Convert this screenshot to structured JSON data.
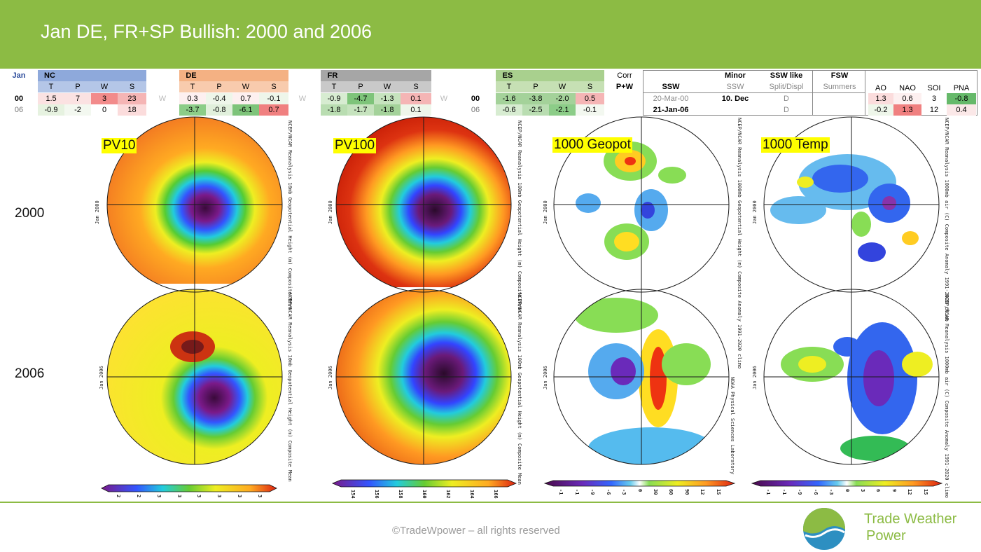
{
  "title": "Jan DE, FR+SP Bullish: 2000 and 2006",
  "tables": {
    "month": "Jan",
    "nc": {
      "name": "NC",
      "cols": [
        "T",
        "P",
        "W",
        "S"
      ],
      "rows": [
        {
          "year": "00",
          "vals": [
            "1.5",
            "7",
            "3",
            "23"
          ]
        },
        {
          "year": "06",
          "vals": [
            "-0.9",
            "-2",
            "0",
            "18"
          ]
        }
      ]
    },
    "de": {
      "name": "DE",
      "cols": [
        "T",
        "P",
        "W",
        "S"
      ],
      "rows": [
        {
          "vals": [
            "0.3",
            "-0.4",
            "0.7",
            "-0.1"
          ]
        },
        {
          "vals": [
            "-3.7",
            "-0.8",
            "-6.1",
            "0.7"
          ]
        }
      ]
    },
    "fr": {
      "name": "FR",
      "cols": [
        "T",
        "P",
        "W",
        "S"
      ],
      "rows": [
        {
          "vals": [
            "-0.9",
            "-4.7",
            "-1.3",
            "0.1"
          ]
        },
        {
          "vals": [
            "-1.8",
            "-1.7",
            "-1.8",
            "0.1"
          ]
        }
      ]
    },
    "es": {
      "name": "ES",
      "cols": [
        "T",
        "P",
        "W",
        "S"
      ],
      "rows": [
        {
          "year": "00",
          "vals": [
            "-1.6",
            "-3.8",
            "-2.0",
            "0.5"
          ]
        },
        {
          "year": "06",
          "vals": [
            "-0.6",
            "-2.5",
            "-2.1",
            "-0.1"
          ]
        }
      ]
    },
    "w_mark": "W",
    "corr": "Corr",
    "corr_pw": "P+W",
    "ssw": {
      "h1": "",
      "h2": "SSW",
      "rows": [
        "20-Mar-00",
        "21-Jan-06"
      ]
    },
    "minor": {
      "h1": "Minor",
      "h2": "SSW",
      "rows": [
        "10. Dec",
        ""
      ]
    },
    "sswlike": {
      "h1": "SSW like",
      "h2": "Split/Displ",
      "rows": [
        "D",
        "D"
      ]
    },
    "fsw": {
      "h1": "FSW",
      "h2": "Summers",
      "rows": [
        "",
        ""
      ]
    },
    "idx": {
      "cols": [
        "AO",
        "NAO",
        "SOI",
        "PNA"
      ],
      "rows": [
        [
          "1.3",
          "0.6",
          "3",
          "-0.8"
        ],
        [
          "-0.2",
          "1.3",
          "12",
          "0.4"
        ]
      ]
    }
  },
  "panels": {
    "labels": [
      "PV10",
      "PV100",
      "1000 Geopot",
      "1000 Temp"
    ],
    "years": [
      "2000",
      "2006"
    ],
    "side_top": [
      "Jan 2000",
      "Jan 2000",
      "Jan 2000",
      "Jan 2000"
    ],
    "side_bottom": [
      "Jan 2006",
      "Jan 2006",
      "Jan 2006",
      "Jan 2006"
    ],
    "captions": [
      "NCEP/NCAR Reanalysis 10mb Geopotential Height (m) Composite Mean",
      "NCEP/NCAR Reanalysis 100mb Geopotential Height (m) Composite Mean",
      "NCEP/NCAR Reanalysis 1000mb Geopotential Height (m) Composite Anomaly 1991-2020 climo",
      "NCEP/NCAR Reanalysis 1000mb air (C) Composite Anomaly 1991-2020 climo"
    ],
    "credit": "NOAA Physical Sciences Laboratory",
    "colorbars": [
      [
        "2",
        "2",
        "3",
        "3",
        "3",
        "3",
        "3",
        "3"
      ],
      [
        "154",
        "156",
        "158",
        "160",
        "162",
        "164",
        "166"
      ],
      [
        "-1",
        "-1",
        "-9",
        "-6",
        "-3",
        "0",
        "30",
        "60",
        "90",
        "12",
        "15"
      ],
      [
        "-1",
        "-1",
        "-9",
        "-6",
        "-3",
        "0",
        "3",
        "6",
        "9",
        "12",
        "15"
      ]
    ]
  },
  "footer": {
    "copyright": "©TradeWpower – all rights reserved",
    "brand_line1": "Trade Weather",
    "brand_line2": "Power"
  },
  "colors": {
    "brand_green": "#8cbb44",
    "logo_blue": "#2d8fc1",
    "nc_head": "#8ea9db",
    "de_head": "#f4b183",
    "fr_head": "#a6a6a6",
    "es_head": "#a9d08e"
  }
}
